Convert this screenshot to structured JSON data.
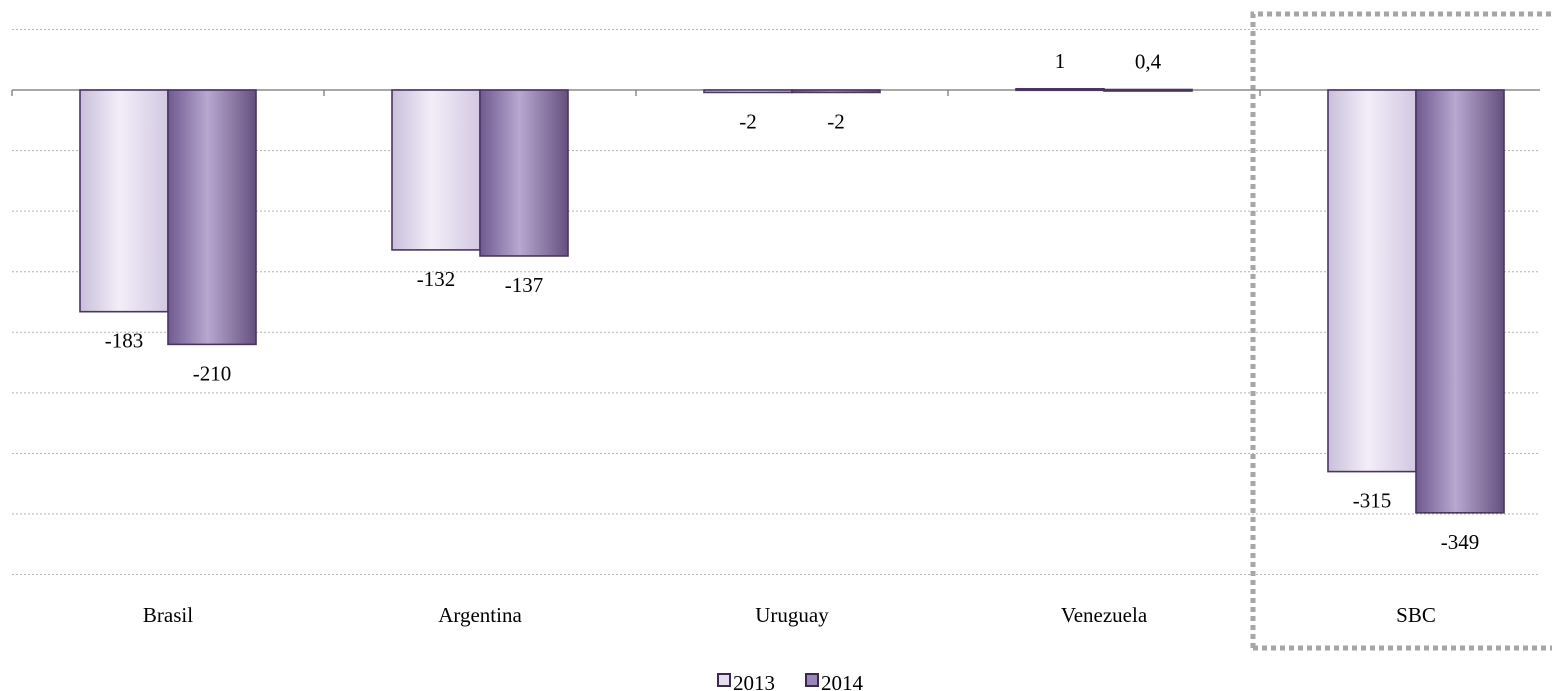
{
  "chart_data": {
    "type": "bar",
    "categories": [
      "Brasil",
      "Argentina",
      "Uruguay",
      "Venezuela",
      "SBC"
    ],
    "series": [
      {
        "name": "2013",
        "values": [
          -183,
          -132,
          -2,
          1,
          -315
        ],
        "labels": [
          "-183",
          "-132",
          "-2",
          "1",
          "-315"
        ],
        "color": "#e4def0"
      },
      {
        "name": "2014",
        "values": [
          -210,
          -137,
          -2,
          0.4,
          -349
        ],
        "labels": [
          "-210",
          "-137",
          "-2",
          "0,4",
          "-349"
        ],
        "color": "#9b86b8"
      }
    ],
    "ylim": [
      -400,
      50
    ],
    "grid": true,
    "y_ticks_shown": false,
    "highlighted_category": "SBC",
    "legend_position": "bottom-center",
    "colors": {
      "series_2013": "#e4def0",
      "series_2014": "#9b86b8",
      "bar_outline": "#4a3560",
      "gridline": "#b3b3b3",
      "axis": "#8c8c8c",
      "highlight_box": "#a6a6a6"
    }
  }
}
